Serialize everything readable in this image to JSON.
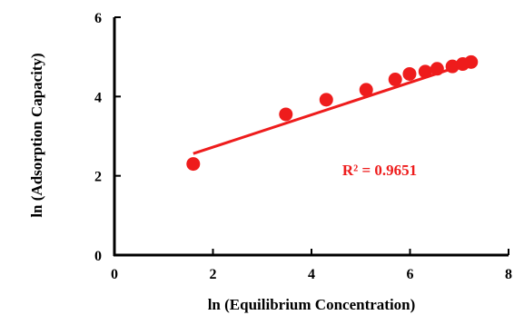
{
  "chart_data": {
    "type": "scatter",
    "title": "",
    "xlabel": "ln (Equilibrium Concentration)",
    "ylabel": "ln (Adsorption Capacity)",
    "xlim": [
      0,
      8
    ],
    "ylim": [
      0,
      6
    ],
    "xticks": [
      0,
      2,
      4,
      6,
      8
    ],
    "yticks": [
      0,
      2,
      4,
      6
    ],
    "x_tick_labels": [
      "0",
      "2",
      "4",
      "6",
      "8"
    ],
    "y_tick_labels": [
      "0",
      "2",
      "4",
      "6"
    ],
    "grid": false,
    "legend": "none",
    "series": [
      {
        "color": "#ee1c1c",
        "points": [
          {
            "x": 1.6,
            "y": 2.3
          },
          {
            "x": 3.48,
            "y": 3.55
          },
          {
            "x": 4.3,
            "y": 3.92
          },
          {
            "x": 5.11,
            "y": 4.17
          },
          {
            "x": 5.7,
            "y": 4.43
          },
          {
            "x": 5.99,
            "y": 4.57
          },
          {
            "x": 6.31,
            "y": 4.63
          },
          {
            "x": 6.55,
            "y": 4.7
          },
          {
            "x": 6.86,
            "y": 4.76
          },
          {
            "x": 7.07,
            "y": 4.82
          },
          {
            "x": 7.24,
            "y": 4.87
          }
        ]
      }
    ],
    "trendline": {
      "type": "linear",
      "color": "#ee1c1c",
      "x_start": 1.6,
      "x_end": 7.24,
      "y_start": 2.56,
      "y_end": 4.86
    },
    "annotation": {
      "text": "R² = 0.9651",
      "color": "#ee1c1c"
    }
  }
}
